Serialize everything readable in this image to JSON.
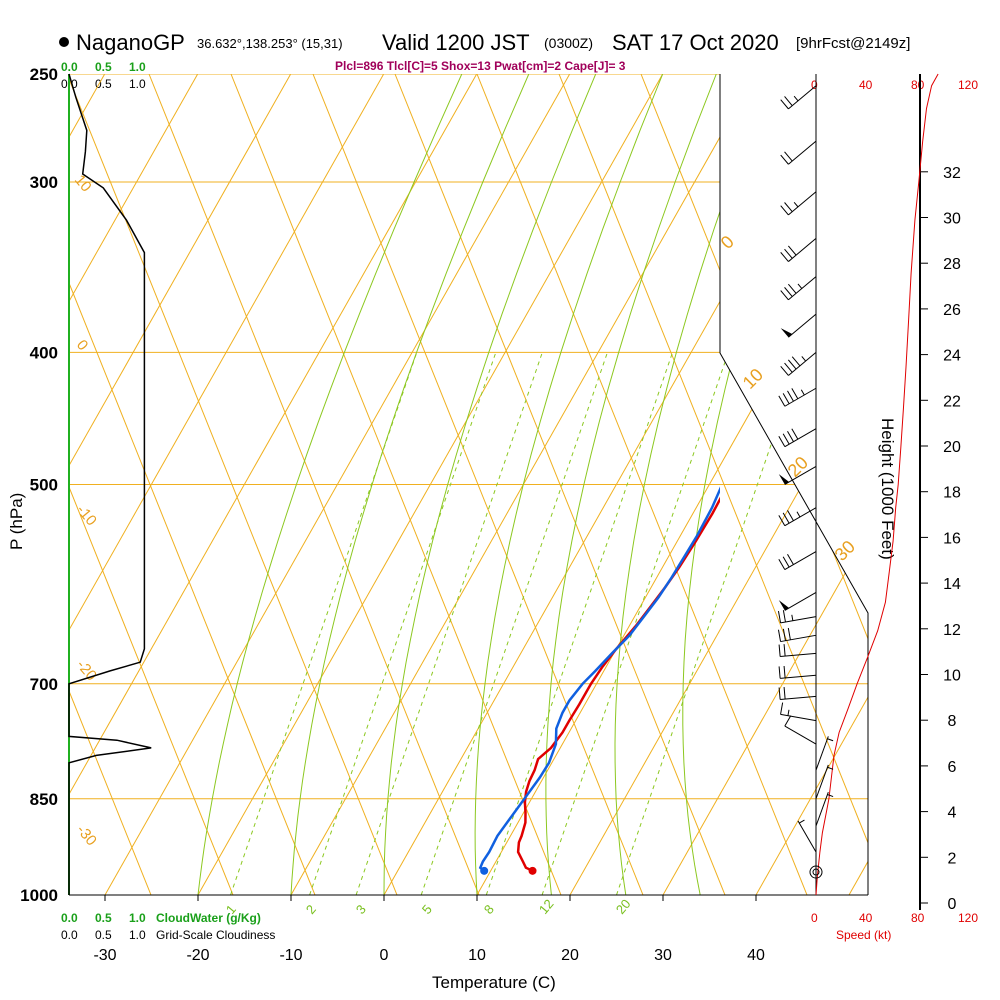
{
  "header": {
    "station": "NaganoGP",
    "coords": "36.632°,138.253° (15,31)",
    "valid": "Valid 1200 JST",
    "zulu": "(0300Z)",
    "date": "SAT 17 Oct 2020",
    "forecast": "[9hrFcst@2149z]",
    "params": "Plcl=896 Tlcl[C]=5 Shox=13 Pwat[cm]=2 Cape[J]= 3"
  },
  "colors": {
    "temperature": "#e00000",
    "dewpoint": "#1060e0",
    "isotherm": "#f0b020",
    "dry_adiabat": "#f0b020",
    "moist_adiabat": "#8cc820",
    "mixing_ratio": "#8cc820",
    "cloudwater": "#20b020",
    "speed": "#e00000"
  },
  "chart_data": {
    "type": "line",
    "title": "NaganoGP Valid 1200 JST (0300Z) SAT 17 Oct 2020",
    "xlabel": "Temperature (C)",
    "ylabel": "P (hPa)",
    "right_ylabel": "Height (1000 Feet)",
    "x_ticks": [
      -30,
      -20,
      -10,
      0,
      10,
      20,
      30,
      40
    ],
    "p_ticks": [
      250,
      300,
      400,
      500,
      700,
      850,
      1000
    ],
    "height_ticks": [
      0,
      2,
      4,
      6,
      8,
      10,
      12,
      14,
      16,
      18,
      20,
      22,
      24,
      26,
      28,
      30,
      32
    ],
    "xlim": [
      -35,
      36
    ],
    "plim": [
      250,
      1000
    ],
    "isotherm_labels": [
      "10",
      "0",
      "-10",
      "-20",
      "-30"
    ],
    "dry_adiabat_labels": [
      "0",
      "10",
      "20",
      "30"
    ],
    "mixing_ratio_labels": [
      "1",
      "2",
      "3",
      "5",
      "8",
      "12",
      "20"
    ],
    "cloudwater_ticks": [
      "0.0",
      "0.5",
      "1.0"
    ],
    "cloudiness_ticks": [
      "0.0",
      "0.5",
      "1.0"
    ],
    "cloudwater_label": "CloudWater (g/Kg)",
    "cloudiness_label": "Grid-Scale Cloudiness",
    "speed_ticks": [
      "0",
      "40",
      "80",
      "120"
    ],
    "speed_label": "Speed (kt)",
    "series": [
      {
        "name": "Temperature",
        "points": [
          [
            14.5,
            960
          ],
          [
            13.6,
            955
          ],
          [
            12.9,
            945
          ],
          [
            11.8,
            930
          ],
          [
            11.3,
            915
          ],
          [
            11.2,
            905
          ],
          [
            10.8,
            885
          ],
          [
            10.2,
            870
          ],
          [
            9.5,
            855
          ],
          [
            9.0,
            840
          ],
          [
            8.7,
            825
          ],
          [
            8.6,
            810
          ],
          [
            8.3,
            795
          ],
          [
            9.0,
            780
          ],
          [
            9.3,
            760
          ],
          [
            9.3,
            745
          ],
          [
            9.4,
            725
          ],
          [
            9.4,
            700
          ],
          [
            9.6,
            680
          ],
          [
            10.0,
            660
          ],
          [
            10.7,
            635
          ],
          [
            11.1,
            615
          ],
          [
            11.5,
            595
          ],
          [
            11.8,
            575
          ],
          [
            12.0,
            550
          ],
          [
            12.1,
            525
          ],
          [
            12.0,
            500
          ],
          [
            11.5,
            465
          ],
          [
            11.1,
            445
          ],
          [
            10.6,
            420
          ],
          [
            10.0,
            395
          ],
          [
            9.0,
            370
          ],
          [
            7.6,
            350
          ],
          [
            6.3,
            335
          ],
          [
            5.2,
            320
          ],
          [
            3.8,
            300
          ],
          [
            2.8,
            290
          ],
          [
            1.4,
            276
          ],
          [
            0.8,
            268
          ],
          [
            0.3,
            260
          ],
          [
            0.1,
            257
          ]
        ]
      },
      {
        "name": "Dewpoint",
        "points": [
          [
            9.3,
            960
          ],
          [
            8.7,
            955
          ],
          [
            8.6,
            945
          ],
          [
            8.7,
            930
          ],
          [
            8.6,
            905
          ],
          [
            9.0,
            870
          ],
          [
            9.3,
            845
          ],
          [
            9.6,
            820
          ],
          [
            9.7,
            800
          ],
          [
            9.3,
            775
          ],
          [
            8.4,
            755
          ],
          [
            8.1,
            735
          ],
          [
            8.1,
            720
          ],
          [
            8.5,
            700
          ],
          [
            9.1,
            685
          ],
          [
            9.8,
            665
          ],
          [
            10.6,
            645
          ],
          [
            11.0,
            625
          ],
          [
            11.4,
            605
          ],
          [
            11.6,
            585
          ],
          [
            11.7,
            565
          ],
          [
            11.8,
            545
          ],
          [
            11.7,
            520
          ],
          [
            11.3,
            495
          ],
          [
            10.6,
            470
          ],
          [
            9.7,
            445
          ],
          [
            8.5,
            420
          ],
          [
            6.9,
            395
          ],
          [
            5.2,
            370
          ],
          [
            3.5,
            350
          ],
          [
            1.0,
            330
          ],
          [
            -1.6,
            310
          ],
          [
            -3.2,
            297
          ],
          [
            -4.8,
            282
          ],
          [
            -6.5,
            266
          ],
          [
            -7.5,
            257
          ]
        ]
      }
    ],
    "cloudiness_profile": [
      [
        0.0,
        1000
      ],
      [
        0.0,
        800
      ],
      [
        0.2,
        790
      ],
      [
        0.6,
        780
      ],
      [
        0.35,
        770
      ],
      [
        0.0,
        765
      ],
      [
        0.0,
        700
      ],
      [
        0.3,
        685
      ],
      [
        0.52,
        675
      ],
      [
        0.55,
        660
      ],
      [
        0.55,
        600
      ],
      [
        0.55,
        500
      ],
      [
        0.55,
        400
      ],
      [
        0.55,
        338
      ],
      [
        0.42,
        320
      ],
      [
        0.25,
        303
      ],
      [
        0.1,
        296
      ],
      [
        0.12,
        285
      ],
      [
        0.13,
        275
      ],
      [
        0.05,
        260
      ],
      [
        0.0,
        250
      ]
    ],
    "speed_profile_kt": [
      [
        0,
        1000
      ],
      [
        1,
        970
      ],
      [
        3,
        930
      ],
      [
        5,
        900
      ],
      [
        8,
        870
      ],
      [
        10,
        850
      ],
      [
        12,
        820
      ],
      [
        14,
        790
      ],
      [
        18,
        760
      ],
      [
        25,
        730
      ],
      [
        32,
        700
      ],
      [
        40,
        670
      ],
      [
        48,
        640
      ],
      [
        54,
        610
      ],
      [
        57,
        580
      ],
      [
        60,
        550
      ],
      [
        62,
        520
      ],
      [
        64,
        500
      ],
      [
        66,
        470
      ],
      [
        68,
        440
      ],
      [
        70,
        410
      ],
      [
        72,
        380
      ],
      [
        74,
        350
      ],
      [
        77,
        320
      ],
      [
        80,
        300
      ],
      [
        83,
        280
      ],
      [
        86,
        265
      ],
      [
        90,
        255
      ],
      [
        95,
        250
      ]
    ],
    "wind_barbs": [
      {
        "p": 255,
        "dir": 230,
        "speed_kt": 25
      },
      {
        "p": 280,
        "dir": 230,
        "speed_kt": 20
      },
      {
        "p": 305,
        "dir": 230,
        "speed_kt": 25
      },
      {
        "p": 330,
        "dir": 230,
        "speed_kt": 30
      },
      {
        "p": 352,
        "dir": 230,
        "speed_kt": 35
      },
      {
        "p": 375,
        "dir": 230,
        "speed_kt": 50
      },
      {
        "p": 400,
        "dir": 230,
        "speed_kt": 45
      },
      {
        "p": 425,
        "dir": 240,
        "speed_kt": 45
      },
      {
        "p": 455,
        "dir": 240,
        "speed_kt": 40
      },
      {
        "p": 485,
        "dir": 240,
        "speed_kt": 50
      },
      {
        "p": 520,
        "dir": 240,
        "speed_kt": 35
      },
      {
        "p": 560,
        "dir": 240,
        "speed_kt": 30
      },
      {
        "p": 600,
        "dir": 240,
        "speed_kt": 50
      },
      {
        "p": 625,
        "dir": 260,
        "speed_kt": 25
      },
      {
        "p": 645,
        "dir": 260,
        "speed_kt": 30
      },
      {
        "p": 665,
        "dir": 265,
        "speed_kt": 20
      },
      {
        "p": 690,
        "dir": 265,
        "speed_kt": 20
      },
      {
        "p": 715,
        "dir": 265,
        "speed_kt": 20
      },
      {
        "p": 745,
        "dir": 280,
        "speed_kt": 15
      },
      {
        "p": 775,
        "dir": 300,
        "speed_kt": 10
      },
      {
        "p": 810,
        "dir": 20,
        "speed_kt": 5
      },
      {
        "p": 850,
        "dir": 20,
        "speed_kt": 5
      },
      {
        "p": 890,
        "dir": 20,
        "speed_kt": 5
      },
      {
        "p": 930,
        "dir": 330,
        "speed_kt": 5
      }
    ]
  }
}
